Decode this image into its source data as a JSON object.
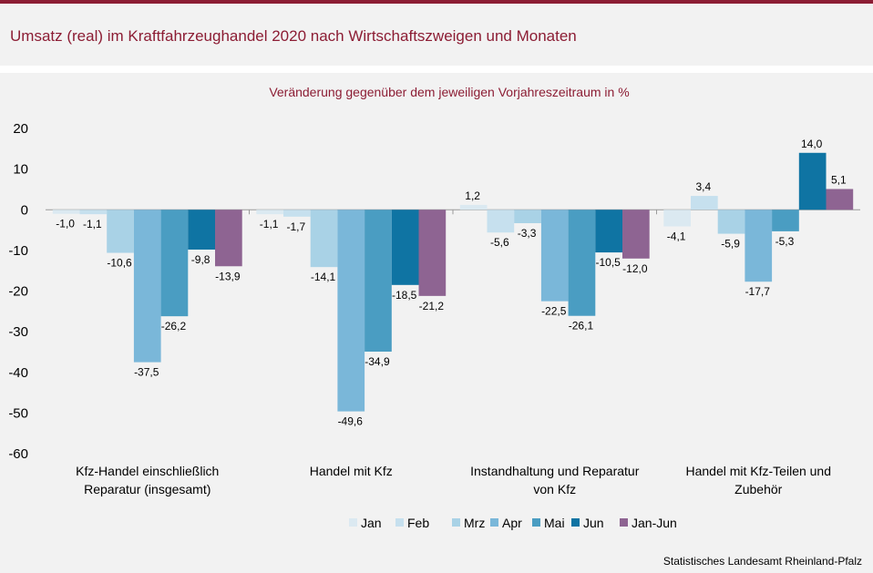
{
  "title": "Umsatz (real) im Kraftfahrzeughandel 2020 nach Wirtschaftszweigen und Monaten",
  "source": "Statistisches Landesamt Rheinland-Pfalz",
  "chart_data": {
    "type": "bar",
    "subtitle": "Veränderung  gegenüber  dem jeweiligen Vorjahreszeitraum  in %",
    "categories": [
      [
        "Kfz-Handel einschließlich",
        "Reparatur (insgesamt)"
      ],
      [
        "Handel mit Kfz"
      ],
      [
        "Instandhaltung und Reparatur",
        "von Kfz"
      ],
      [
        "Handel mit Kfz-Teilen und",
        "Zubehör"
      ]
    ],
    "series": [
      {
        "name": "Jan",
        "color": "#dbe9f1",
        "values": [
          -1.0,
          -1.1,
          1.2,
          -4.1
        ],
        "labels": [
          "-1,0",
          "-1,1",
          "1,2",
          "-4,1"
        ]
      },
      {
        "name": "Feb",
        "color": "#c6e0ee",
        "values": [
          -1.1,
          -1.7,
          -5.6,
          3.4
        ],
        "labels": [
          "-1,1",
          "-1,7",
          "-5,6",
          "3,4"
        ]
      },
      {
        "name": "Mrz",
        "color": "#a9d2e6",
        "values": [
          -10.6,
          -14.1,
          -3.3,
          -5.9
        ],
        "labels": [
          "-10,6",
          "-14,1",
          "-3,3",
          "-5,9"
        ]
      },
      {
        "name": "Apr",
        "color": "#7ab7d9",
        "values": [
          -37.5,
          -49.6,
          -22.5,
          -17.7
        ],
        "labels": [
          "-37,5",
          "-49,6",
          "-22,5",
          "-17,7"
        ]
      },
      {
        "name": "Mai",
        "color": "#4a9dc2",
        "values": [
          -26.2,
          -34.9,
          -26.1,
          -5.3
        ],
        "labels": [
          "-26,2",
          "-34,9",
          "-26,1",
          "-5,3"
        ]
      },
      {
        "name": "Jun",
        "color": "#0f74a3",
        "values": [
          -9.8,
          -18.5,
          -10.5,
          14.0
        ],
        "labels": [
          "-9,8",
          "-18,5",
          "-10,5",
          "14,0"
        ]
      },
      {
        "name": "Jan-Jun",
        "color": "#8e6492",
        "values": [
          -13.9,
          -21.2,
          -12.0,
          5.1
        ],
        "labels": [
          "-13,9",
          "-21,2",
          "-12,0",
          "5,1"
        ]
      }
    ],
    "ylim": [
      -60,
      20
    ],
    "yticks": [
      20,
      10,
      0,
      -10,
      -20,
      -30,
      -40,
      -50,
      -60
    ],
    "xlabel": "",
    "ylabel": "",
    "grid": false,
    "legend": "bottom"
  }
}
